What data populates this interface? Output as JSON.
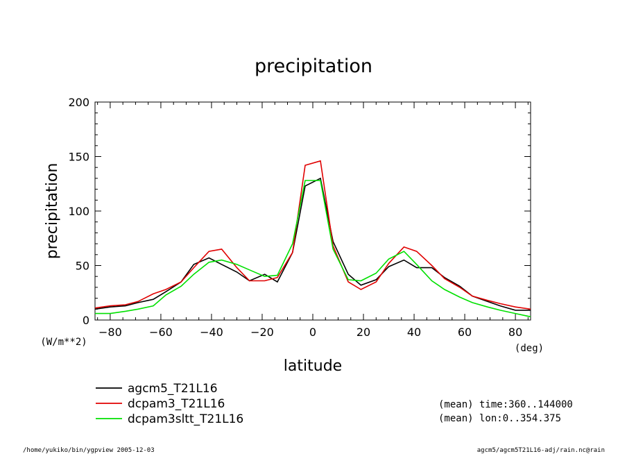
{
  "chart_data": {
    "type": "line",
    "title": "precipitation",
    "xlabel": "latitude",
    "ylabel": "precipitation",
    "x_unit": "(deg)",
    "y_unit": "(W/m**2)",
    "xlim": [
      -86,
      86
    ],
    "ylim": [
      0,
      200
    ],
    "x_ticks": [
      -80,
      -60,
      -40,
      -20,
      0,
      20,
      40,
      60,
      80
    ],
    "x_tick_labels": [
      "−80",
      "−60",
      "−40",
      "−20",
      "0",
      "20",
      "40",
      "60",
      "80"
    ],
    "y_ticks": [
      0,
      50,
      100,
      150,
      200
    ],
    "y_tick_labels": [
      "0",
      "50",
      "100",
      "150",
      "200"
    ],
    "grid": false,
    "legend_position": "bottom-left",
    "series": [
      {
        "name": "agcm5_T21L16",
        "color": "#000000",
        "x": [
          -86,
          -80,
          -74,
          -69,
          -63,
          -58,
          -52,
          -47,
          -41,
          -36,
          -30,
          -25,
          -19,
          -14,
          -8,
          -3,
          3,
          8,
          14,
          19,
          25,
          30,
          36,
          41,
          47,
          52,
          58,
          63,
          69,
          74,
          80,
          86
        ],
        "y": [
          10,
          12,
          13,
          16,
          19,
          26,
          35,
          51,
          57,
          51,
          44,
          36,
          42,
          35,
          62,
          123,
          130,
          72,
          42,
          32,
          37,
          49,
          55,
          48,
          48,
          39,
          31,
          22,
          17,
          13,
          9,
          9
        ]
      },
      {
        "name": "dcpam3_T21L16",
        "color": "#e00000",
        "x": [
          -86,
          -80,
          -74,
          -69,
          -63,
          -58,
          -52,
          -47,
          -41,
          -36,
          -30,
          -25,
          -19,
          -14,
          -8,
          -3,
          3,
          8,
          14,
          19,
          25,
          30,
          36,
          41,
          47,
          52,
          58,
          63,
          69,
          74,
          80,
          86
        ],
        "y": [
          11,
          13,
          14,
          17,
          24,
          28,
          35,
          48,
          63,
          65,
          48,
          36,
          36,
          39,
          62,
          142,
          146,
          68,
          35,
          28,
          35,
          52,
          67,
          63,
          50,
          38,
          30,
          22,
          18,
          15,
          12,
          10
        ]
      },
      {
        "name": "dcpam3sltt_T21L16",
        "color": "#00e000",
        "x": [
          -86,
          -80,
          -74,
          -69,
          -63,
          -58,
          -52,
          -47,
          -41,
          -36,
          -30,
          -25,
          -19,
          -14,
          -8,
          -3,
          3,
          8,
          14,
          19,
          25,
          30,
          36,
          41,
          47,
          52,
          58,
          63,
          69,
          74,
          80,
          86
        ],
        "y": [
          6,
          6,
          8,
          10,
          13,
          23,
          31,
          42,
          53,
          55,
          51,
          46,
          40,
          41,
          70,
          128,
          128,
          65,
          37,
          36,
          43,
          56,
          63,
          51,
          36,
          28,
          21,
          16,
          12,
          9,
          6,
          3
        ]
      }
    ],
    "annotations": [
      "(mean) time:360..144000",
      "(mean) lon:0..354.375"
    ]
  },
  "footer": {
    "left": "/home/yukiko/bin/ygpview  2005-12-03",
    "right": "agcm5/agcm5T21L16-adj/rain.nc@rain"
  }
}
